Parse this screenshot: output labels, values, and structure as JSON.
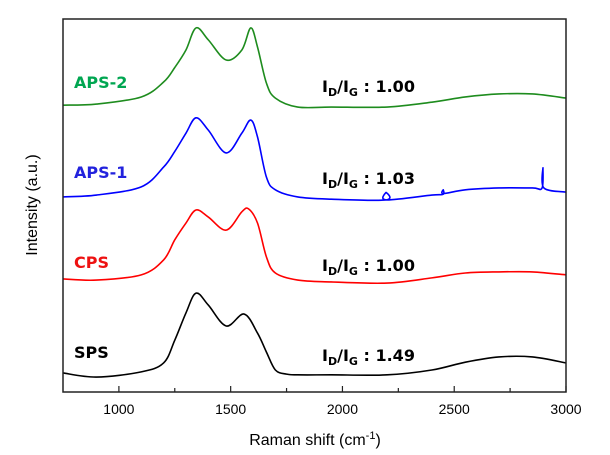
{
  "chart_data": {
    "type": "line",
    "title": "",
    "xlabel": "Raman shift (cm",
    "xlabel_sup": "-1",
    "xlabel_close": ")",
    "ylabel": "Intensity (a.u.)",
    "xlim": [
      750,
      3000
    ],
    "ylim": [
      0,
      10
    ],
    "xticks": [
      1000,
      1500,
      2000,
      2500,
      3000
    ],
    "xtick_labels": [
      "1000",
      "1500",
      "2000",
      "2500",
      "3000"
    ],
    "minor_xticks": [
      1250,
      1750,
      2250,
      2750
    ],
    "grid": false,
    "yticks_shown": false,
    "series": [
      {
        "name": "APS-2",
        "color": "#1e8c1e",
        "label_color": "#00a651",
        "ratio_label": "1.00",
        "x": [
          750,
          900,
          1100,
          1200,
          1250,
          1300,
          1345,
          1400,
          1480,
          1550,
          1590,
          1620,
          1660,
          1700,
          1800,
          1950,
          2200,
          2400,
          2550,
          2700,
          2850,
          3000
        ],
        "y": [
          7.69,
          7.72,
          7.91,
          8.31,
          8.7,
          9.17,
          9.76,
          9.44,
          8.9,
          9.17,
          9.76,
          9.25,
          8.28,
          7.88,
          7.64,
          7.64,
          7.64,
          7.77,
          7.91,
          7.99,
          7.99,
          7.88
        ]
      },
      {
        "name": "APS-1",
        "color": "#0000ff",
        "label_color": "#2222dd",
        "ratio_label": "1.03",
        "x": [
          750,
          900,
          1100,
          1200,
          1250,
          1300,
          1345,
          1400,
          1480,
          1550,
          1590,
          1620,
          1660,
          1700,
          1800,
          1950,
          2194,
          2195,
          2196,
          2400,
          2450,
          2451,
          2452,
          2550,
          2700,
          2850,
          2893,
          2897,
          2901,
          3000
        ],
        "y": [
          5.23,
          5.28,
          5.5,
          6.03,
          6.45,
          6.94,
          7.35,
          7.02,
          6.41,
          6.94,
          7.29,
          6.84,
          5.76,
          5.42,
          5.23,
          5.17,
          5.15,
          5.35,
          5.15,
          5.28,
          5.3,
          5.42,
          5.32,
          5.42,
          5.47,
          5.47,
          5.47,
          6.01,
          5.47,
          5.36
        ]
      },
      {
        "name": "CPS",
        "color": "#ff0000",
        "label_color": "#ee1111",
        "ratio_label": "1.00",
        "x": [
          750,
          900,
          1100,
          1200,
          1250,
          1300,
          1345,
          1400,
          1480,
          1550,
          1580,
          1620,
          1660,
          1700,
          1800,
          1950,
          2200,
          2400,
          2550,
          2700,
          2850,
          3000
        ],
        "y": [
          3.03,
          3.0,
          3.14,
          3.54,
          4.08,
          4.53,
          4.88,
          4.69,
          4.34,
          4.83,
          4.91,
          4.53,
          3.62,
          3.19,
          3.0,
          2.95,
          2.92,
          3.06,
          3.19,
          3.22,
          3.22,
          3.14
        ]
      },
      {
        "name": "SPS",
        "color": "#000000",
        "label_color": "#000000",
        "ratio_label": "1.49",
        "x": [
          750,
          900,
          1100,
          1200,
          1250,
          1300,
          1345,
          1400,
          1480,
          1560,
          1620,
          1660,
          1700,
          1750,
          1800,
          1950,
          2200,
          2400,
          2550,
          2700,
          2850,
          3000
        ],
        "y": [
          0.51,
          0.4,
          0.54,
          0.78,
          1.39,
          2.12,
          2.65,
          2.33,
          1.77,
          2.09,
          1.58,
          1.07,
          0.59,
          0.48,
          0.46,
          0.46,
          0.46,
          0.59,
          0.8,
          0.94,
          0.94,
          0.78
        ]
      }
    ],
    "ratio_prefix_main": "I",
    "ratio_sub_d": "D",
    "ratio_slash": "/I",
    "ratio_sub_g": "G",
    "ratio_colon": " : "
  }
}
